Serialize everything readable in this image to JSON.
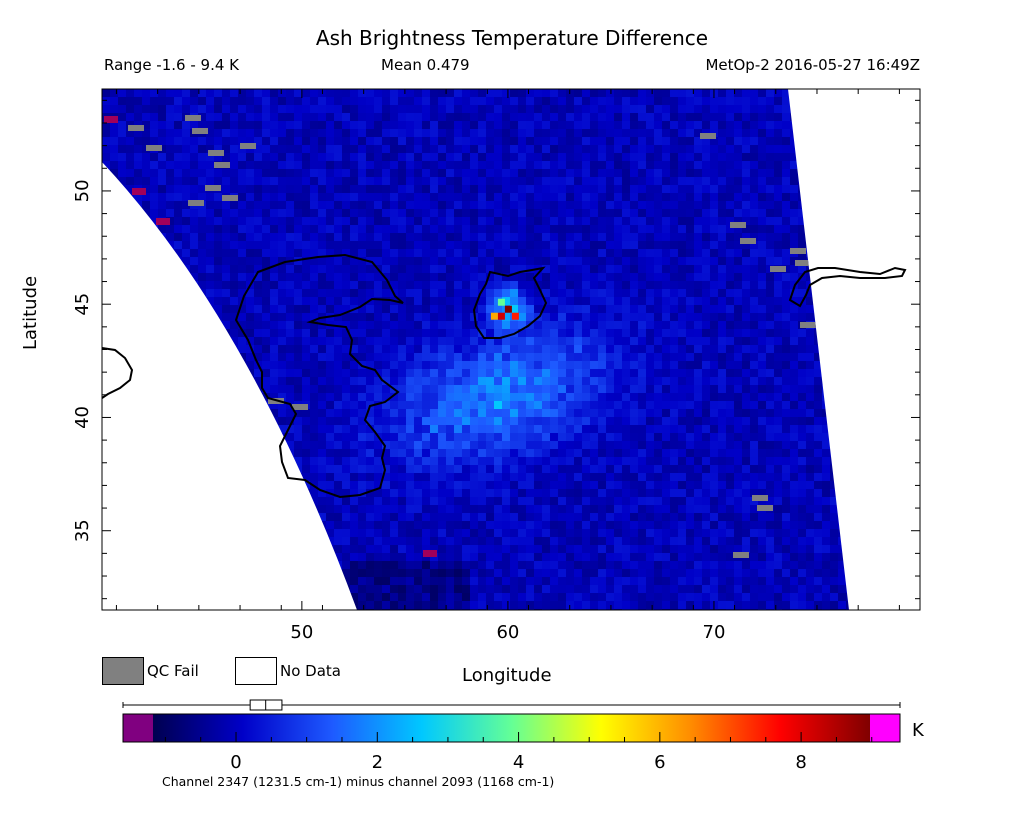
{
  "header": {
    "title": "Ash Brightness Temperature Difference",
    "range_text": "Range -1.6 - 9.4 K",
    "mean_text": "Mean 0.479",
    "satellite_text": "MetOp-2 2016-05-27 16:49Z"
  },
  "legend": {
    "qc_fail_label": "QC Fail",
    "no_data_label": "No Data",
    "qc_fail_color": "#808080",
    "no_data_color": "#ffffff"
  },
  "colorbar": {
    "unit": "K",
    "caption": "Channel 2347 (1231.5 cm-1) minus channel 2093 (1168 cm-1)",
    "min": -1.6,
    "max": 9.4,
    "ticks": [
      0,
      2,
      4,
      6,
      8
    ],
    "tick_labels": [
      "0",
      "2",
      "4",
      "6",
      "8"
    ],
    "under_color": "#800080",
    "over_color": "#ff00ff",
    "colors": [
      "#000050",
      "#0000c8",
      "#1e5aff",
      "#00c8ff",
      "#64ff96",
      "#ffff00",
      "#ff8c00",
      "#ff0000",
      "#800000"
    ],
    "box_stats": {
      "whisker_low": -1.6,
      "q1": 0.2,
      "median": 0.42,
      "q3": 0.65,
      "whisker_high": 9.4
    }
  },
  "chart_data": {
    "type": "heatmap",
    "title": "Ash Brightness Temperature Difference",
    "xlabel": "Longitude",
    "ylabel": "Latitude",
    "xlim": [
      40.3,
      80
    ],
    "ylim": [
      31.5,
      54.5
    ],
    "xticks": [
      50,
      60,
      70
    ],
    "xtick_labels": [
      "50",
      "60",
      "70"
    ],
    "yticks": [
      35,
      40,
      45,
      50
    ],
    "ytick_labels": [
      "35",
      "40",
      "45",
      "50"
    ],
    "value_range": [
      -1.6,
      9.4
    ],
    "mean": 0.479,
    "units": "K",
    "features": [
      {
        "name": "hotspot",
        "lon": 60.0,
        "lat": 44.8,
        "max_value": 9.0
      },
      {
        "name": "enhanced plume",
        "lon_range": [
          55,
          65
        ],
        "lat_range": [
          38,
          44
        ],
        "value": 2.2
      }
    ]
  }
}
